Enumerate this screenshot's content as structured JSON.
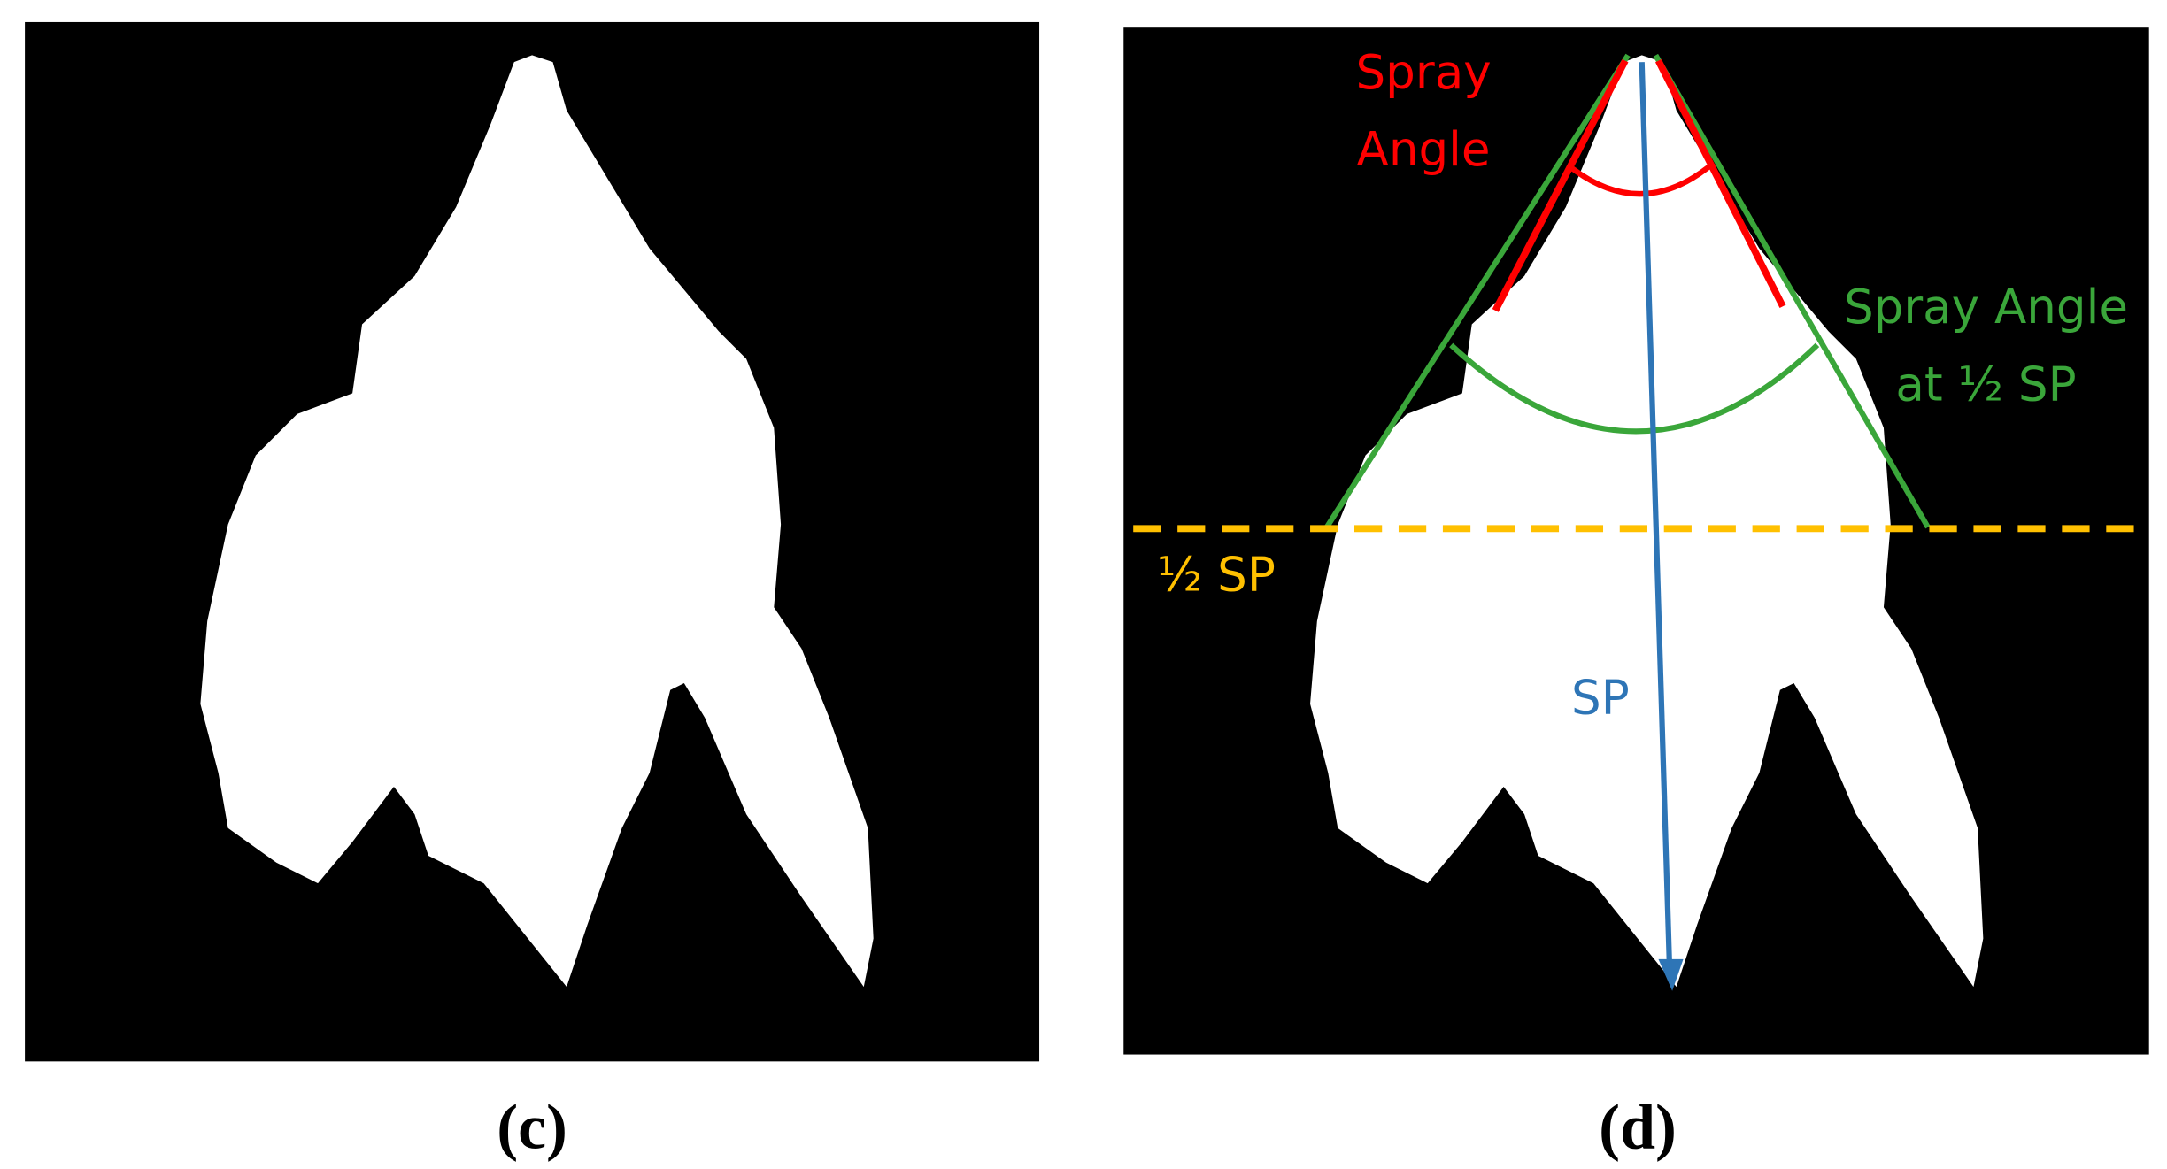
{
  "panels": [
    {
      "label": "(c)"
    },
    {
      "label": "(d)",
      "annotations": {
        "spray_angle": [
          "Spray",
          "Angle"
        ],
        "spray_angle_half": [
          "Spray Angle",
          "at ½ SP"
        ],
        "half_sp": "½ SP",
        "sp": "SP"
      }
    }
  ]
}
